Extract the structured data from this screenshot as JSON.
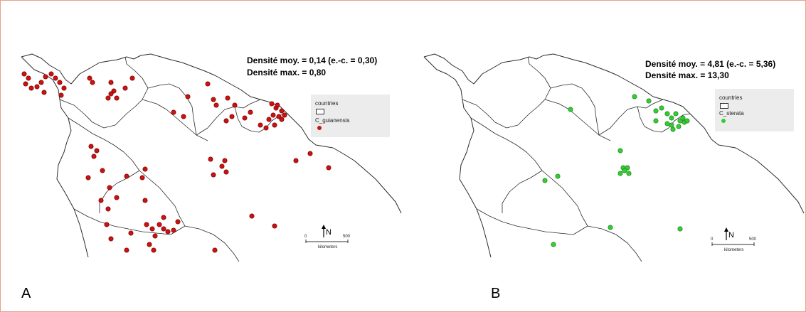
{
  "panels": [
    {
      "letter": "A",
      "stats": {
        "mean": "Densité moy. = 0,14 (e.-c. = 0,30)",
        "max": "Densité max. = 0,80"
      },
      "legend": {
        "countries_label": "countries",
        "species_label": "C_guianensis"
      },
      "north_label": "N",
      "scale": {
        "zero": "0",
        "end": "500",
        "unit": "kilometers"
      },
      "point_color": "#cc1111",
      "point_stroke": "#6a0000"
    },
    {
      "letter": "B",
      "stats": {
        "mean": "Densité moy. = 4,81 (e.-c. = 5,36)",
        "max": "Densité max. = 13,30"
      },
      "legend": {
        "countries_label": "countries",
        "species_label": "C_sterata"
      },
      "north_label": "N",
      "scale": {
        "zero": "0",
        "end": "500",
        "unit": "kilometers"
      },
      "point_color": "#33cc33",
      "point_stroke": "#1d7a1d"
    }
  ]
}
